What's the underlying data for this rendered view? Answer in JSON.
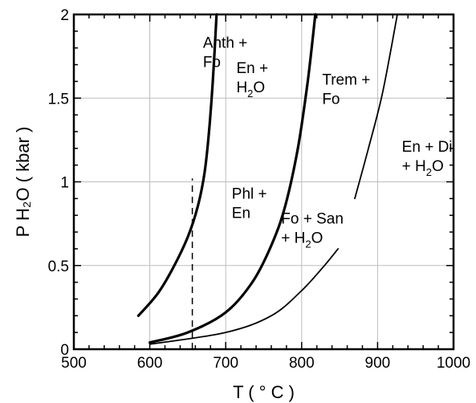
{
  "chart_data": {
    "type": "line",
    "xlabel": "T ( ° C )",
    "ylabel": "P H₂O ( kbar )",
    "xlim": [
      500,
      1000
    ],
    "ylim": [
      0,
      2
    ],
    "xticks": [
      "500",
      "600",
      "700",
      "800",
      "900",
      "1000"
    ],
    "yticks": [
      "0",
      "0.5",
      "1",
      "1.5",
      "2"
    ],
    "grid": true,
    "series": [
      {
        "style": "thick",
        "points": [
          [
            585,
            0.2
          ],
          [
            610,
            0.33
          ],
          [
            630,
            0.48
          ],
          [
            650,
            0.67
          ],
          [
            663,
            0.85
          ],
          [
            672,
            1.05
          ],
          [
            678,
            1.3
          ],
          [
            683,
            1.6
          ],
          [
            688,
            2.0
          ]
        ]
      },
      {
        "style": "thick",
        "points": [
          [
            600,
            0.04
          ],
          [
            650,
            0.1
          ],
          [
            700,
            0.22
          ],
          [
            735,
            0.4
          ],
          [
            760,
            0.62
          ],
          [
            778,
            0.85
          ],
          [
            795,
            1.2
          ],
          [
            808,
            1.6
          ],
          [
            818,
            2.0
          ]
        ]
      },
      {
        "style": "thin",
        "points": [
          [
            600,
            0.03
          ],
          [
            700,
            0.1
          ],
          [
            760,
            0.2
          ],
          [
            800,
            0.35
          ],
          [
            830,
            0.5
          ],
          [
            848,
            0.6
          ]
        ]
      },
      {
        "style": "thin",
        "points": [
          [
            870,
            0.9
          ],
          [
            888,
            1.2
          ],
          [
            905,
            1.5
          ],
          [
            918,
            1.8
          ],
          [
            926,
            2.0
          ]
        ]
      },
      {
        "style": "dashed",
        "points": [
          [
            656,
            0.0
          ],
          [
            656,
            1.02
          ]
        ]
      }
    ],
    "annotations": [
      {
        "id": "anth-fo",
        "line1": "Anth +",
        "line2": "Fo",
        "x": 670,
        "y": 1.8
      },
      {
        "id": "en-h2o",
        "line1": "En +",
        "line2a": "H",
        "line2sub": "2",
        "line2b": "O",
        "x": 714,
        "y": 1.65
      },
      {
        "id": "trem-fo",
        "line1": "Trem +",
        "line2": "Fo",
        "x": 827,
        "y": 1.58
      },
      {
        "id": "en-di-h2o",
        "line1": "En + Di",
        "line2a": "+ H",
        "line2sub": "2",
        "line2b": "O",
        "x": 932,
        "y": 1.18
      },
      {
        "id": "phl-en",
        "line1": "Phl +",
        "line2": "En",
        "x": 708,
        "y": 0.9
      },
      {
        "id": "fo-san-h2o",
        "line1": "Fo + San",
        "line2a": "+ H",
        "line2sub": "2",
        "line2b": "O",
        "x": 773,
        "y": 0.75
      }
    ]
  }
}
